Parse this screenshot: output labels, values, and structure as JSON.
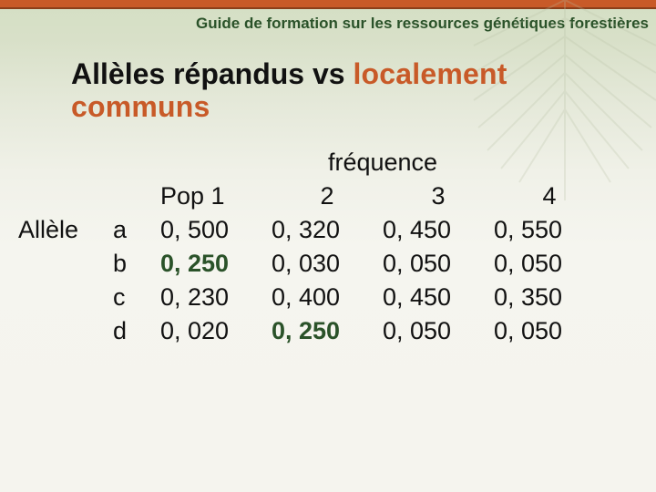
{
  "header": {
    "bar_color": "#c85a28",
    "title": "Guide de formation sur les ressources génétiques forestières"
  },
  "main": {
    "title_prefix": "Allèles répandus vs ",
    "title_highlight": "localement communs",
    "highlight_color": "#c85a28"
  },
  "table": {
    "freq_label": "fréquence",
    "row_header": "Allèle",
    "col_headers": [
      "Pop 1",
      "2",
      "3",
      "4"
    ],
    "rows": [
      {
        "label": "a",
        "cells": [
          {
            "v": "0, 500",
            "bold": false
          },
          {
            "v": "0, 320",
            "bold": false
          },
          {
            "v": "0, 450",
            "bold": false
          },
          {
            "v": "0, 550",
            "bold": false
          }
        ]
      },
      {
        "label": "b",
        "cells": [
          {
            "v": "0, 250",
            "bold": true
          },
          {
            "v": "0, 030",
            "bold": false
          },
          {
            "v": "0, 050",
            "bold": false
          },
          {
            "v": "0, 050",
            "bold": false
          }
        ]
      },
      {
        "label": "c",
        "cells": [
          {
            "v": "0, 230",
            "bold": false
          },
          {
            "v": "0, 400",
            "bold": false
          },
          {
            "v": "0, 450",
            "bold": false
          },
          {
            "v": "0, 350",
            "bold": false
          }
        ]
      },
      {
        "label": "d",
        "cells": [
          {
            "v": "0, 020",
            "bold": false
          },
          {
            "v": "0, 250",
            "bold": true
          },
          {
            "v": "0, 050",
            "bold": false
          },
          {
            "v": "0, 050",
            "bold": false
          }
        ]
      }
    ]
  },
  "styling": {
    "bold_highlight_color": "#2a5229",
    "header_text_color": "#2a5229",
    "body_text_color": "#111111",
    "gradient_top": "#d4dfc4",
    "gradient_bottom": "#f5f4ee",
    "title_fontsize": 32,
    "table_fontsize": 27,
    "header_fontsize": 17
  }
}
